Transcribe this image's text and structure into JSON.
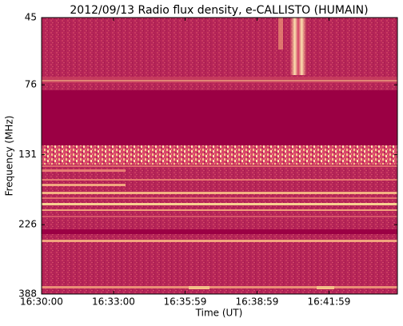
{
  "chart_data": {
    "type": "spectrogram",
    "title": "2012/09/13  Radio flux density, e-CALLISTO (HUMAIN)",
    "x_label": "Time (UT)",
    "y_label": "Frequency (MHz)",
    "xlim": [
      "16:30:00",
      "16:44:50"
    ],
    "xticks": [
      "16:30:00",
      "16:33:00",
      "16:35:59",
      "16:38:59",
      "16:41:59"
    ],
    "ylim": [
      45,
      388
    ],
    "yticks": [
      45,
      76,
      131,
      226,
      388
    ],
    "ylog": true,
    "yinverted": true
  }
}
